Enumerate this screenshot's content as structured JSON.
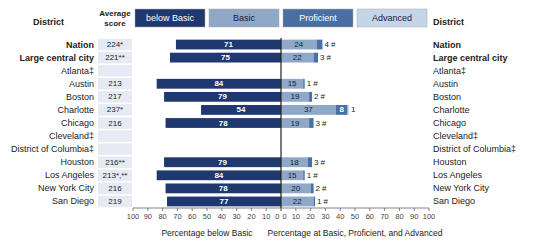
{
  "chart_data": [
    {
      "type": "bar",
      "orientation": "horizontal",
      "categories": [
        "Nation",
        "Large central city",
        "Atlanta‡",
        "Austin",
        "Boston",
        "Charlotte",
        "Chicago",
        "Cleveland‡",
        "District of Columbia‡",
        "Houston",
        "Los Angeles",
        "New York City",
        "San Diego"
      ],
      "category_label": "District",
      "score_header": "Average score",
      "scores": [
        "224*",
        "221**",
        null,
        "213",
        "217",
        "237*",
        "216",
        null,
        null,
        "216**",
        "213*,**",
        "216",
        "219"
      ],
      "series": [
        {
          "name": "below Basic",
          "color": "#1f3870",
          "values": [
            71,
            75,
            null,
            84,
            79,
            54,
            78,
            null,
            null,
            79,
            84,
            78,
            77
          ]
        }
      ],
      "xlim": [
        100,
        0
      ],
      "xticks": [
        0,
        10,
        20,
        30,
        40,
        50,
        60,
        70,
        80,
        90,
        100
      ],
      "xlabel": "Percentage below Basic",
      "data_labels": true,
      "legend": "top"
    },
    {
      "type": "bar",
      "orientation": "horizontal",
      "stacked": true,
      "categories": [
        "Nation",
        "Large central city",
        "Atlanta‡",
        "Austin",
        "Boston",
        "Charlotte",
        "Chicago",
        "Cleveland‡",
        "District of Columbia‡",
        "Houston",
        "Los Angeles",
        "New York City",
        "San Diego"
      ],
      "category_label": "District",
      "series": [
        {
          "name": "Basic",
          "color": "#8fa8c8",
          "values": [
            24,
            22,
            null,
            15,
            19,
            37,
            19,
            null,
            null,
            18,
            15,
            20,
            22
          ]
        },
        {
          "name": "Proficient",
          "color": "#4a6fa5",
          "values": [
            4,
            3,
            null,
            1,
            2,
            8,
            3,
            null,
            null,
            3,
            1,
            2,
            1
          ]
        },
        {
          "name": "Advanced",
          "color": "#c5d5e8",
          "values": [
            0,
            0,
            null,
            0,
            0,
            1,
            0,
            null,
            null,
            0,
            0,
            0,
            0
          ],
          "value_labels": [
            "#",
            "#",
            null,
            "#",
            "#",
            "1",
            "#",
            null,
            null,
            "#",
            "#",
            "#",
            "#"
          ]
        }
      ],
      "xlim": [
        0,
        100
      ],
      "xticks": [
        0,
        10,
        20,
        30,
        40,
        50,
        60,
        70,
        80,
        90,
        100
      ],
      "xlabel": "Percentage at Basic, Proficient, and Advanced",
      "data_labels": true
    }
  ]
}
